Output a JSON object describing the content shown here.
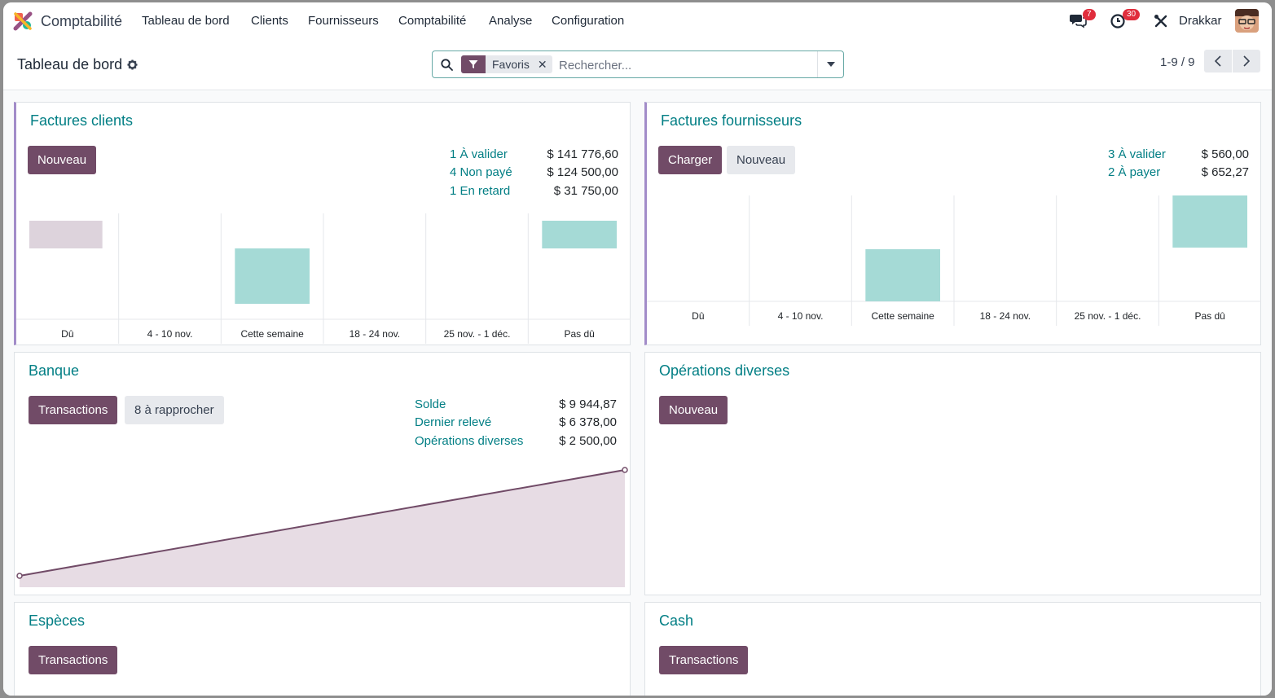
{
  "navbar": {
    "app_name": "Comptabilité",
    "menu": [
      "Tableau de bord",
      "Clients",
      "Fournisseurs",
      "Comptabilité",
      "Analyse",
      "Configuration"
    ],
    "messages_count": "7",
    "activities_count": "30",
    "user": "Drakkar"
  },
  "control_panel": {
    "breadcrumb": "Tableau de bord",
    "facet_label": "Favoris",
    "search_placeholder": "Rechercher...",
    "pager": "1-9 / 9"
  },
  "cards": {
    "customer_invoices": {
      "title": "Factures clients",
      "new_button": "Nouveau",
      "stats": [
        {
          "label": "1 À valider",
          "value": "$ 141 776,60"
        },
        {
          "label": "4 Non payé",
          "value": "$ 124 500,00"
        },
        {
          "label": "1 En retard",
          "value": "$ 31 750,00"
        }
      ]
    },
    "vendor_bills": {
      "title": "Factures fournisseurs",
      "upload_button": "Charger",
      "new_button": "Nouveau",
      "stats": [
        {
          "label": "3 À valider",
          "value": "$ 560,00"
        },
        {
          "label": "2 À payer",
          "value": "$ 652,27"
        }
      ]
    },
    "bank": {
      "title": "Banque",
      "transactions_button": "Transactions",
      "reconcile_button": "8 à rapprocher",
      "stats": [
        {
          "label": "Solde",
          "value": "$ 9 944,87"
        },
        {
          "label": "Dernier relevé",
          "value": "$ 6 378,00"
        },
        {
          "label": "Opérations diverses",
          "value": "$ 2 500,00"
        }
      ]
    },
    "misc": {
      "title": "Opérations diverses",
      "new_button": "Nouveau"
    },
    "especes": {
      "title": "Espèces",
      "transactions_button": "Transactions"
    },
    "cash": {
      "title": "Cash",
      "transactions_button": "Transactions"
    }
  },
  "chart_data": [
    {
      "type": "bar",
      "categories": [
        "Dû",
        "4 - 10 nov.",
        "Cette semaine",
        "18 - 24 nov.",
        "25 nov. - 1 déc.",
        "Pas dû"
      ],
      "values": [
        null,
        null,
        1,
        null,
        null,
        0.5
      ],
      "past_due_bar": 0.5,
      "colors": {
        "past_due": "#ddd3dc",
        "bar": "#a5dad6"
      }
    },
    {
      "type": "bar",
      "categories": [
        "Dû",
        "4 - 10 nov.",
        "Cette semaine",
        "18 - 24 nov.",
        "25 nov. - 1 déc.",
        "Pas dû"
      ],
      "values": [
        0,
        0,
        0.5,
        0,
        0,
        0.5
      ],
      "colors": {
        "bar": "#a5dad6"
      }
    },
    {
      "type": "area",
      "x": [
        0,
        1
      ],
      "y": [
        0,
        1
      ],
      "colors": {
        "line": "#714b67",
        "fill": "#e7dce4"
      }
    }
  ]
}
